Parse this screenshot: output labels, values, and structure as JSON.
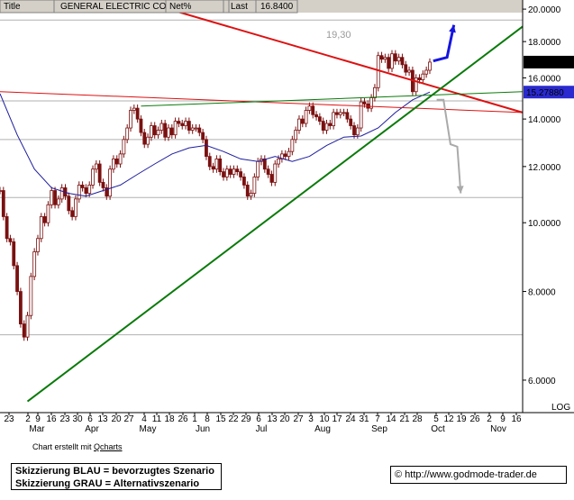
{
  "header": {
    "title_label": "Title",
    "title_value": "GENERAL ELECTRIC CO",
    "net_label": "Net%",
    "net_value": "",
    "last_label": "Last",
    "last_value": "16.8400"
  },
  "annotation": "19,30",
  "scale_label": "LOG",
  "credit": {
    "prefix": "Chart erstellt mit ",
    "tool": "Qcharts"
  },
  "legend": {
    "line1": "Skizzierung BLAU = bevorzugtes Szenario",
    "line2": "Skizzierung GRAU = Alternativszenario"
  },
  "url": "http://www.godmode-trader.de",
  "colors": {
    "candle": "#7a1010",
    "ma_line": "#1d1d9e",
    "red_line": "#dd1111",
    "green_line": "#0a7a0a",
    "scenario_blue": "#1515e0",
    "scenario_gray": "#aaaaaa",
    "last_box": "#000000",
    "ma_box": "#2a2ad0"
  },
  "chart_data": {
    "type": "candlestick",
    "title": "GENERAL ELECTRIC CO",
    "y_scale": "log",
    "ylim": [
      5.4,
      20.6
    ],
    "y_ticks": [
      "20.0000",
      "18.0000",
      "16.0000",
      "14.0000",
      "12.0000",
      "10.0000",
      "8.0000",
      "6.0000"
    ],
    "y_tick_values": [
      20,
      18,
      16,
      14,
      12,
      10,
      8,
      6
    ],
    "x_tick_labels": [
      "23",
      "2",
      "9",
      "16",
      "23",
      "30",
      "6",
      "13",
      "20",
      "27",
      "4",
      "11",
      "18",
      "26",
      "1",
      "8",
      "15",
      "22",
      "29",
      "6",
      "13",
      "20",
      "27",
      "3",
      "10",
      "17",
      "24",
      "31",
      "7",
      "14",
      "21",
      "28",
      "5",
      "12",
      "19",
      "26",
      "2",
      "9",
      "16"
    ],
    "x_month_labels": [
      "Mar",
      "Apr",
      "May",
      "Jun",
      "Jul",
      "Aug",
      "Sep",
      "Oct",
      "Nov"
    ],
    "value_labels": [
      {
        "text": "16.8400",
        "value": 16.84,
        "kind": "last"
      },
      {
        "text": "15.27880",
        "value": 15.2788,
        "kind": "moving_average"
      }
    ],
    "horizontal_levels": [
      19.3,
      14.85,
      13.1,
      10.85,
      6.95
    ],
    "trendlines": [
      {
        "color": "red",
        "from": [
          0,
          15.3
        ],
        "to": [
          152,
          14.3
        ]
      },
      {
        "color": "red",
        "from": [
          40,
          20.6
        ],
        "to": [
          152,
          14.3
        ]
      },
      {
        "color": "green",
        "from": [
          8,
          5.6
        ],
        "to": [
          152,
          18.9
        ]
      },
      {
        "color": "green",
        "from": [
          41,
          14.6
        ],
        "to": [
          152,
          15.3
        ]
      }
    ],
    "moving_average": [
      [
        0,
        15.2
      ],
      [
        5,
        13.3
      ],
      [
        10,
        11.9
      ],
      [
        15,
        11.2
      ],
      [
        20,
        11.0
      ],
      [
        25,
        10.9
      ],
      [
        30,
        11.1
      ],
      [
        35,
        11.3
      ],
      [
        40,
        11.7
      ],
      [
        45,
        12.1
      ],
      [
        50,
        12.5
      ],
      [
        55,
        12.75
      ],
      [
        60,
        12.85
      ],
      [
        65,
        12.6
      ],
      [
        70,
        12.3
      ],
      [
        75,
        12.2
      ],
      [
        80,
        12.4
      ],
      [
        85,
        12.2
      ],
      [
        90,
        12.4
      ],
      [
        95,
        12.85
      ],
      [
        100,
        13.2
      ],
      [
        105,
        13.25
      ],
      [
        110,
        13.6
      ],
      [
        115,
        14.3
      ],
      [
        120,
        14.9
      ],
      [
        125,
        15.28
      ]
    ],
    "closes": [
      [
        0,
        11.1
      ],
      [
        1,
        10.2
      ],
      [
        2,
        9.5
      ],
      [
        3,
        9.4
      ],
      [
        4,
        8.7
      ],
      [
        5,
        8.0
      ],
      [
        6,
        7.2
      ],
      [
        7,
        6.9
      ],
      [
        8,
        7.4
      ],
      [
        9,
        8.4
      ],
      [
        10,
        9.1
      ],
      [
        11,
        9.5
      ],
      [
        12,
        10.2
      ],
      [
        13,
        10.0
      ],
      [
        14,
        10.6
      ],
      [
        15,
        11.1
      ],
      [
        16,
        10.6
      ],
      [
        17,
        10.8
      ],
      [
        18,
        11.2
      ],
      [
        19,
        10.9
      ],
      [
        20,
        10.4
      ],
      [
        21,
        10.2
      ],
      [
        22,
        10.8
      ],
      [
        23,
        11.3
      ],
      [
        24,
        11.2
      ],
      [
        25,
        11.0
      ],
      [
        26,
        11.3
      ],
      [
        27,
        11.9
      ],
      [
        28,
        12.1
      ],
      [
        29,
        11.4
      ],
      [
        30,
        11.2
      ],
      [
        31,
        10.9
      ],
      [
        32,
        11.9
      ],
      [
        33,
        12.3
      ],
      [
        34,
        12.1
      ],
      [
        35,
        12.5
      ],
      [
        36,
        13.1
      ],
      [
        37,
        13.6
      ],
      [
        38,
        14.4
      ],
      [
        39,
        14.5
      ],
      [
        40,
        14.0
      ],
      [
        41,
        13.4
      ],
      [
        42,
        12.9
      ],
      [
        43,
        13.2
      ],
      [
        44,
        13.7
      ],
      [
        45,
        13.3
      ],
      [
        46,
        13.5
      ],
      [
        47,
        13.8
      ],
      [
        48,
        13.2
      ],
      [
        49,
        13.6
      ],
      [
        50,
        13.3
      ],
      [
        51,
        13.9
      ],
      [
        52,
        13.8
      ],
      [
        53,
        13.7
      ],
      [
        54,
        13.9
      ],
      [
        55,
        13.5
      ],
      [
        56,
        13.6
      ],
      [
        57,
        13.6
      ],
      [
        58,
        13.4
      ],
      [
        59,
        13.1
      ],
      [
        60,
        12.4
      ],
      [
        61,
        12.0
      ],
      [
        62,
        11.9
      ],
      [
        63,
        12.3
      ],
      [
        64,
        11.8
      ],
      [
        65,
        11.6
      ],
      [
        66,
        11.9
      ],
      [
        67,
        11.7
      ],
      [
        68,
        11.9
      ],
      [
        69,
        11.8
      ],
      [
        70,
        11.6
      ],
      [
        71,
        11.3
      ],
      [
        72,
        10.9
      ],
      [
        73,
        11.0
      ],
      [
        74,
        11.6
      ],
      [
        75,
        12.2
      ],
      [
        76,
        12.3
      ],
      [
        77,
        11.9
      ],
      [
        78,
        11.7
      ],
      [
        79,
        11.4
      ],
      [
        80,
        12.1
      ],
      [
        81,
        12.3
      ],
      [
        82,
        12.5
      ],
      [
        83,
        12.4
      ],
      [
        84,
        12.6
      ],
      [
        85,
        13.1
      ],
      [
        86,
        13.5
      ],
      [
        87,
        14.0
      ],
      [
        88,
        13.8
      ],
      [
        89,
        14.4
      ],
      [
        90,
        14.6
      ],
      [
        91,
        14.2
      ],
      [
        92,
        14.1
      ],
      [
        93,
        13.9
      ],
      [
        94,
        13.5
      ],
      [
        95,
        13.8
      ],
      [
        96,
        13.7
      ],
      [
        97,
        14.3
      ],
      [
        98,
        14.2
      ],
      [
        99,
        14.3
      ],
      [
        100,
        14.3
      ],
      [
        101,
        14.0
      ],
      [
        102,
        13.7
      ],
      [
        103,
        13.3
      ],
      [
        104,
        13.6
      ],
      [
        105,
        14.8
      ],
      [
        106,
        14.7
      ],
      [
        107,
        14.5
      ],
      [
        108,
        15.0
      ],
      [
        109,
        15.5
      ],
      [
        110,
        17.2
      ],
      [
        111,
        17.0
      ],
      [
        112,
        17.1
      ],
      [
        113,
        16.5
      ],
      [
        114,
        17.3
      ],
      [
        115,
        16.9
      ],
      [
        116,
        17.1
      ],
      [
        117,
        16.7
      ],
      [
        118,
        16.3
      ],
      [
        119,
        16.4
      ],
      [
        120,
        15.3
      ],
      [
        121,
        16.0
      ],
      [
        122,
        15.9
      ],
      [
        123,
        16.2
      ],
      [
        124,
        16.4
      ],
      [
        125,
        16.84
      ]
    ],
    "scenarios": [
      {
        "name": "bevorzugtes Szenario",
        "color": "blue",
        "points": [
          [
            126,
            16.9
          ],
          [
            130,
            17.1
          ],
          [
            132,
            19.0
          ]
        ]
      },
      {
        "name": "Alternativszenario",
        "color": "gray",
        "points": [
          [
            127,
            14.9
          ],
          [
            129,
            14.9
          ],
          [
            131,
            12.9
          ],
          [
            133,
            12.8
          ],
          [
            134,
            11.0
          ]
        ]
      }
    ]
  }
}
